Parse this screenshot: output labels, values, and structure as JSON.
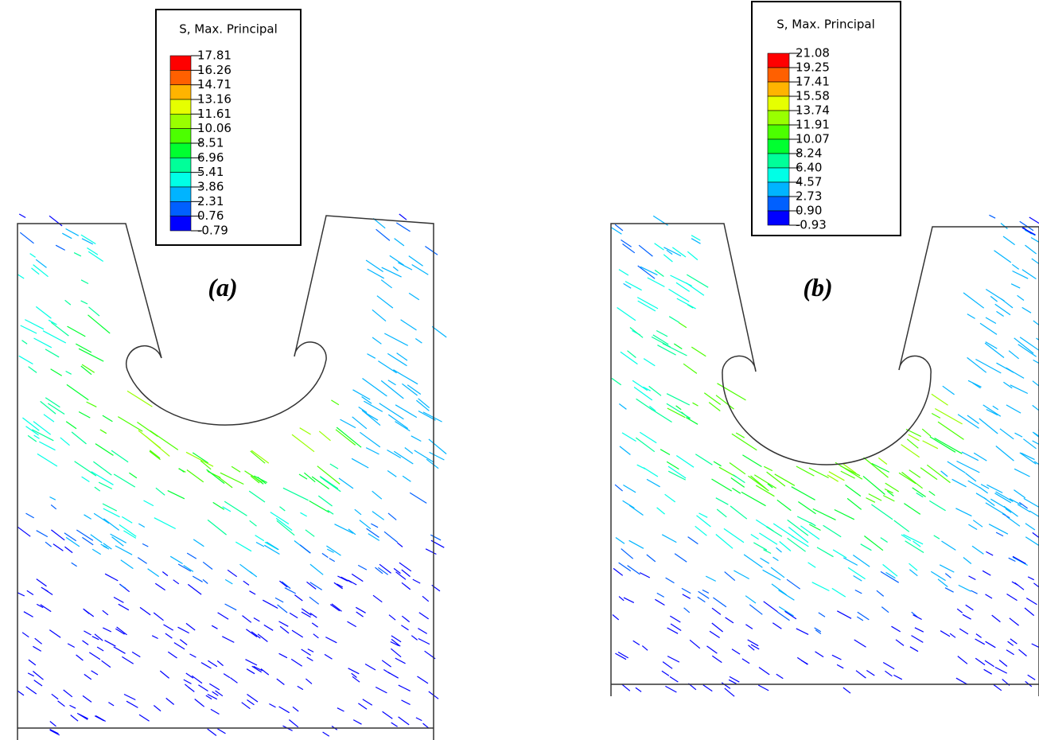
{
  "panels": [
    {
      "label": "(a)",
      "legend": {
        "title": "S, Max. Principal",
        "labels": [
          "17.81",
          "16.26",
          "14.71",
          "13.16",
          "11.61",
          "10.06",
          "8.51",
          "6.96",
          "5.41",
          "3.86",
          "2.31",
          "0.76",
          "-0.79"
        ]
      }
    },
    {
      "label": "(b)",
      "legend": {
        "title": "S, Max. Principal",
        "labels": [
          "21.08",
          "19.25",
          "17.41",
          "15.58",
          "13.74",
          "11.91",
          "10.07",
          "8.24",
          "6.40",
          "4.57",
          "2.73",
          "0.90",
          "-0.93"
        ]
      }
    }
  ]
}
